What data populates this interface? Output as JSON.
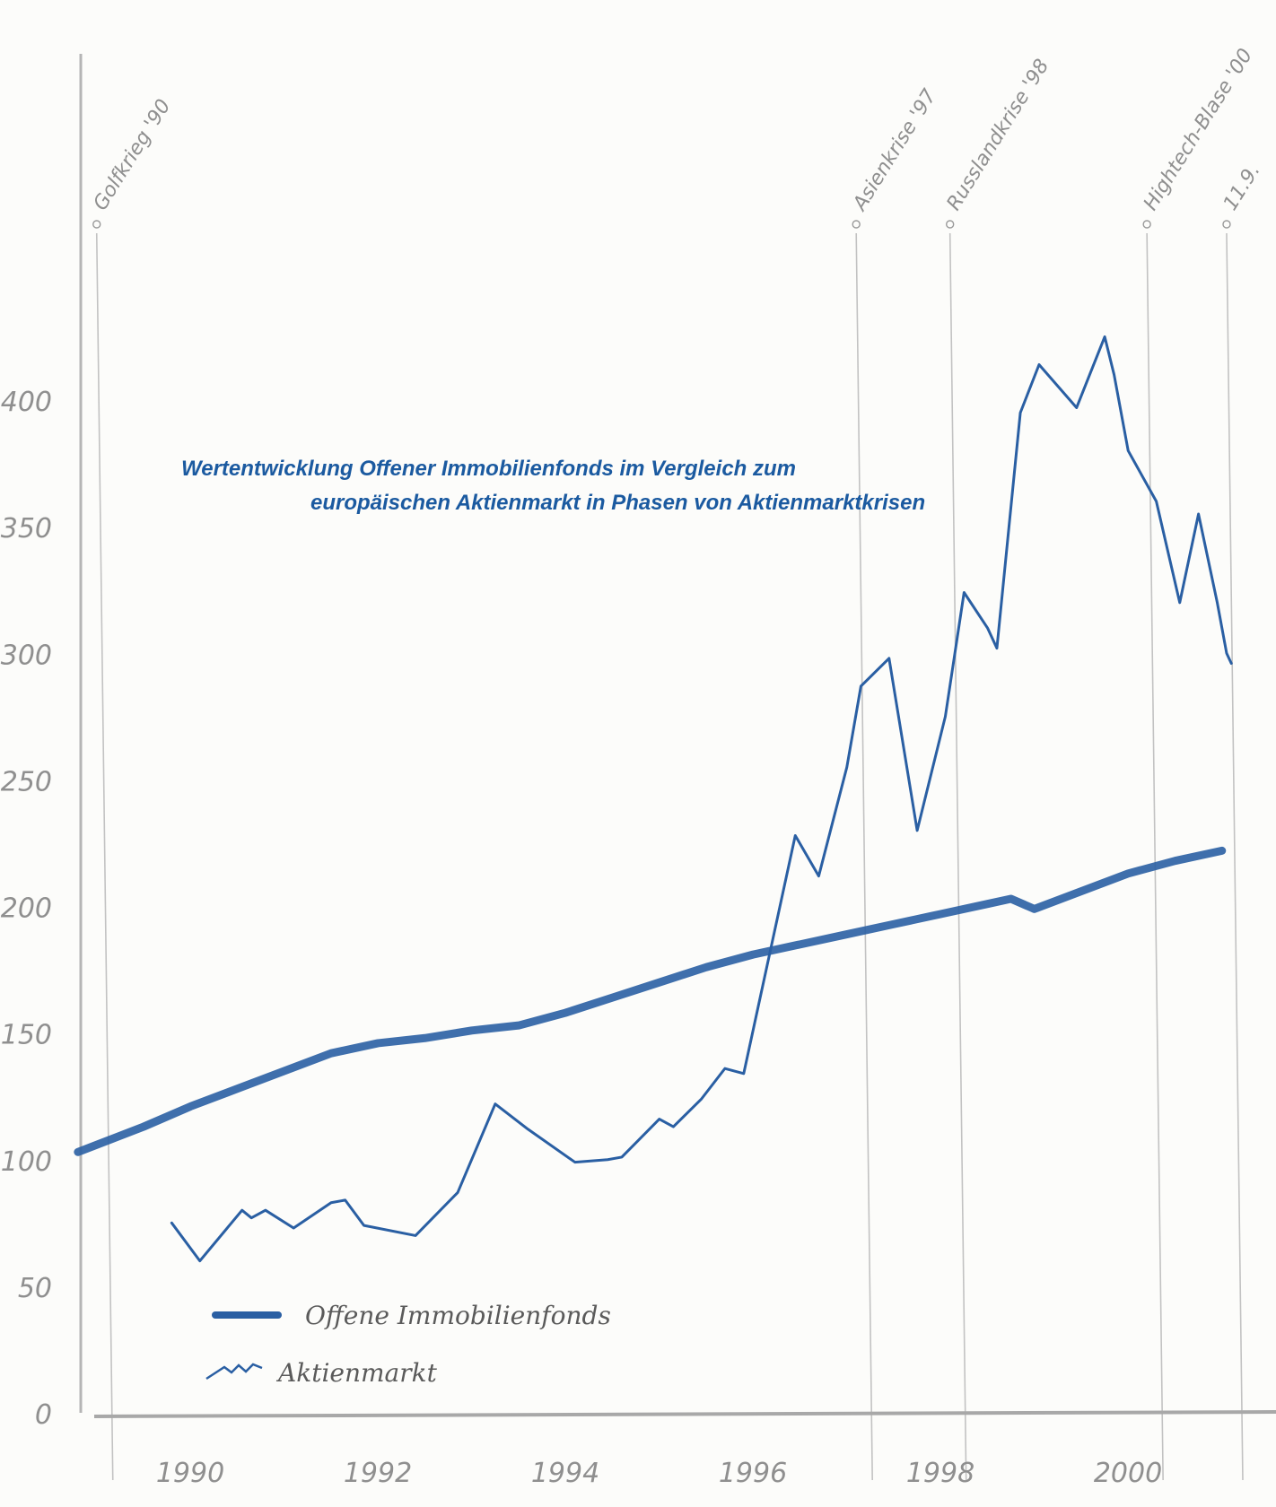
{
  "chart_data": {
    "type": "line",
    "title_line1": "Wertentwicklung Offener Immobilienfonds im Vergleich zum",
    "title_line2": "europäischen Aktienmarkt in Phasen von Aktienmarktkrisen",
    "xlabel": "",
    "ylabel": "",
    "xlim": [
      1989.3,
      2001.5
    ],
    "ylim": [
      0,
      450
    ],
    "x_ticks": [
      "1990",
      "1992",
      "1994",
      "1996",
      "1998",
      "2000"
    ],
    "y_ticks": [
      "0",
      "50",
      "100",
      "150",
      "200",
      "250",
      "300",
      "350",
      "400"
    ],
    "grid": false,
    "legend_position": "bottom-left",
    "series": [
      {
        "name": "Offene Immobilienfonds",
        "color": "#2a5fa3",
        "x": [
          1989.3,
          1990.0,
          1990.5,
          1991.0,
          1991.5,
          1992.0,
          1992.5,
          1993.0,
          1993.5,
          1994.0,
          1994.5,
          1995.0,
          1995.5,
          1996.0,
          1996.5,
          1997.0,
          1997.5,
          1998.0,
          1998.5,
          1999.0,
          1999.25,
          1999.5,
          2000.0,
          2000.5,
          2001.0,
          2001.5
        ],
        "y": [
          103,
          113,
          121,
          128,
          135,
          142,
          146,
          148,
          151,
          153,
          158,
          164,
          170,
          176,
          181,
          185,
          189,
          193,
          197,
          201,
          203,
          199,
          206,
          213,
          218,
          222
        ]
      },
      {
        "name": "Aktienmarkt",
        "color": "#2a5fa3",
        "x": [
          1990.3,
          1990.6,
          1991.05,
          1991.15,
          1991.3,
          1991.6,
          1992.0,
          1992.15,
          1992.35,
          1992.9,
          1993.35,
          1993.75,
          1994.1,
          1994.6,
          1994.95,
          1995.1,
          1995.5,
          1995.65,
          1995.95,
          1996.2,
          1996.4,
          1996.95,
          1997.2,
          1997.5,
          1997.65,
          1997.95,
          1998.25,
          1998.55,
          1998.75,
          1999.0,
          1999.1,
          1999.35,
          1999.55,
          1999.95,
          2000.25,
          2000.35,
          2000.5,
          2000.8,
          2001.05,
          2001.25,
          2001.45,
          2001.55,
          2001.6
        ],
        "y": [
          75,
          60,
          80,
          77,
          80,
          73,
          83,
          84,
          74,
          70,
          87,
          122,
          112,
          99,
          100,
          101,
          116,
          113,
          124,
          136,
          134,
          228,
          212,
          255,
          287,
          298,
          230,
          275,
          324,
          310,
          302,
          395,
          414,
          397,
          425,
          410,
          380,
          360,
          320,
          355,
          320,
          300,
          296
        ]
      }
    ],
    "annotations": [
      {
        "x": 1989.5,
        "label": "Golfkrieg '90"
      },
      {
        "x": 1997.6,
        "label": "Asienkrise '97"
      },
      {
        "x": 1998.6,
        "label": "Russlandkrise '98"
      },
      {
        "x": 2000.7,
        "label": "Hightech-Blase '00"
      },
      {
        "x": 2001.55,
        "label": "11.9."
      }
    ],
    "legend": {
      "series_0": "Offene Immobilienfonds",
      "series_1": "Aktienmarkt"
    }
  }
}
